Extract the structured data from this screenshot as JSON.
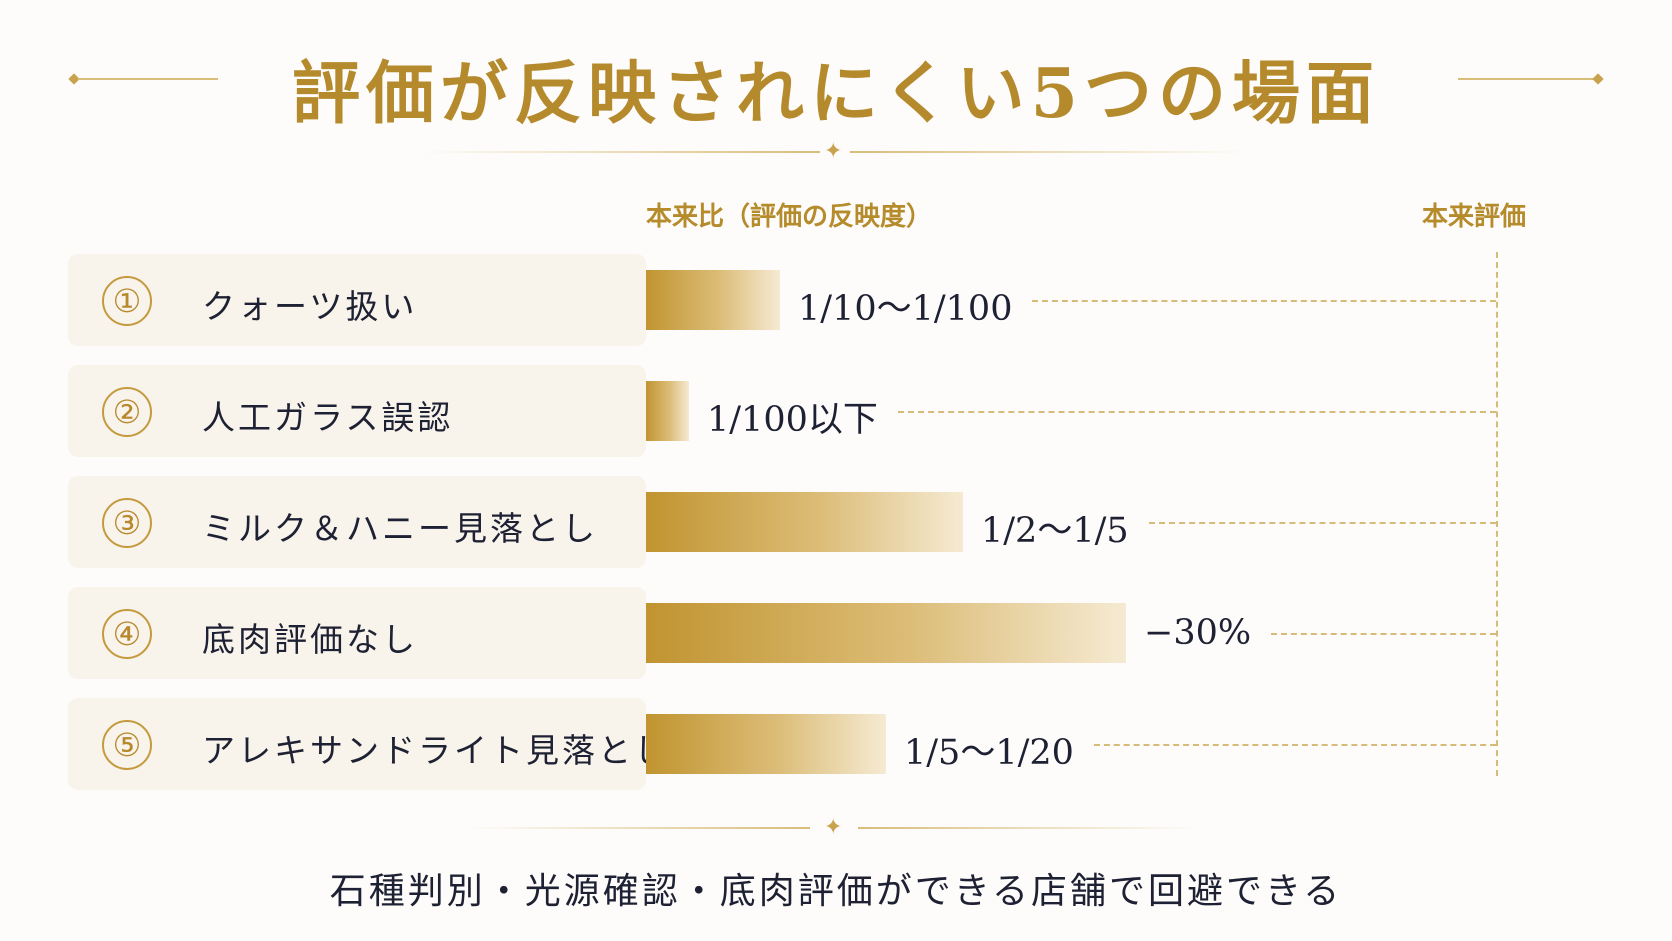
{
  "title": "評価が反映されにくい5つの場面",
  "footer": "石種判別・光源確認・底肉評価ができる店舗で回避できる",
  "colors": {
    "accent": "#b48a2c",
    "text": "#1e2133",
    "card": "#f8f3eb"
  },
  "chart_data": {
    "type": "bar",
    "orientation": "horizontal",
    "column_headers": {
      "ratio": "本来比（評価の反映度）",
      "reference": "本来評価"
    },
    "rows": [
      {
        "num": "①",
        "label": "クォーツ扱い",
        "value_text": "1/10〜1/100",
        "relative_length": 0.14
      },
      {
        "num": "②",
        "label": "人工ガラス誤認",
        "value_text": "1/100以下",
        "relative_length": 0.045
      },
      {
        "num": "③",
        "label": "ミルク＆ハニー見落とし",
        "value_text": "1/2〜1/5",
        "relative_length": 0.33
      },
      {
        "num": "④",
        "label": "底肉評価なし",
        "value_text": "−30%",
        "relative_length": 0.5
      },
      {
        "num": "⑤",
        "label": "アレキサンドライト見落とし",
        "value_text": "1/5〜1/20",
        "relative_length": 0.25
      }
    ],
    "grid": false,
    "legend": "none"
  }
}
